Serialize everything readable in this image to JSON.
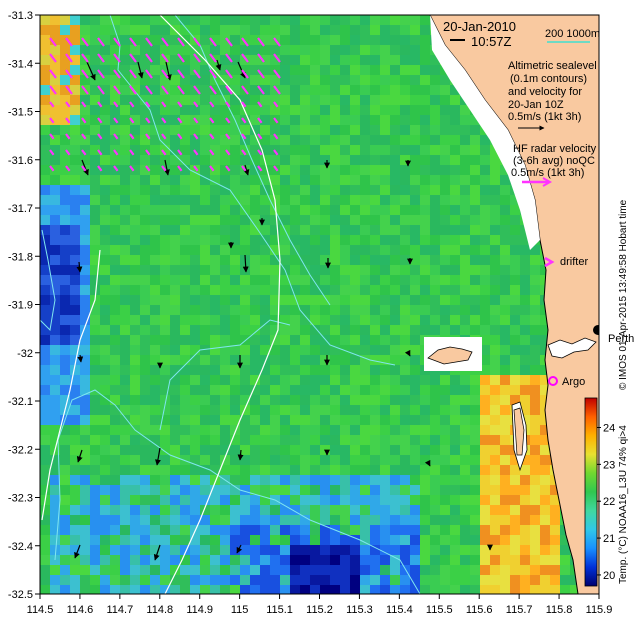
{
  "map": {
    "lon_min": 114.5,
    "lon_max": 115.9,
    "lat_min": -32.5,
    "lat_max": -31.3,
    "x_ticks": [
      "114.5",
      "114.6",
      "114.7",
      "114.8",
      "114.9",
      "115",
      "115.1",
      "115.2",
      "115.3",
      "115.4",
      "115.5",
      "115.6",
      "115.7",
      "115.8",
      "115.9"
    ],
    "y_ticks": [
      "-31.3",
      "-31.4",
      "-31.5",
      "-31.6",
      "-31.7",
      "-31.8",
      "-31.9",
      "-32",
      "-32.1",
      "-32.2",
      "-32.3",
      "-32.4",
      "-32.5"
    ],
    "colors": {
      "land": "#f9c9a0",
      "ocean_green": "#33c94b",
      "cyan_contour": "#7fe6f0",
      "radar_arrow": "#ff33ff",
      "argo": "#ff00ff"
    }
  },
  "annotations": {
    "date": "20-Jan-2010",
    "time": "10:57Z",
    "scale_bar": "200  1000m",
    "legend_title": [
      "Altimetric sealevel",
      "(0.1m contours)",
      "and velocity for",
      "20-Jan 10Z"
    ],
    "alt_scale_label": "0.5m/s (1kt 3h)",
    "radar_title": [
      "HF radar velocity",
      "(3-6h avg) noQC"
    ],
    "radar_scale_label": "0.5m/s (1kt 3h)",
    "drifter_label": "drifter",
    "city_label": "Perth",
    "argo_label": "Argo"
  },
  "colorbar": {
    "tick_labels": [
      "20",
      "21",
      "22",
      "23",
      "24"
    ],
    "min": 19.7,
    "max": 24.8,
    "label": "Temp. (°C) NOAA16_L3U 74% qi>4",
    "colors": [
      "#000070",
      "#0030d8",
      "#1890ff",
      "#30c8e8",
      "#40d8a0",
      "#30c850",
      "#70d830",
      "#e8e030",
      "#ffb000",
      "#ff6000",
      "#c00000"
    ]
  },
  "credit": "© IMOS 01-Apr-2015 13:49:58 Hobart time"
}
